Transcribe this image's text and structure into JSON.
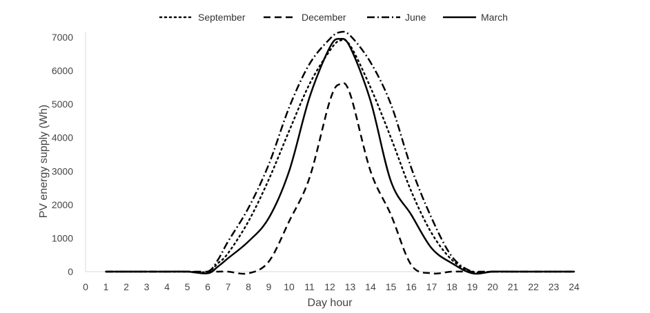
{
  "chart_data": {
    "type": "line",
    "xlabel": "Day hour",
    "ylabel": "PV energy supply (Wh)",
    "xlim": [
      0,
      24
    ],
    "ylim": [
      0,
      7000
    ],
    "x_ticks": [
      0,
      1,
      2,
      3,
      4,
      5,
      6,
      7,
      8,
      9,
      10,
      11,
      12,
      13,
      14,
      15,
      16,
      17,
      18,
      19,
      20,
      21,
      22,
      23,
      24
    ],
    "y_ticks": [
      0,
      1000,
      2000,
      3000,
      4000,
      5000,
      6000,
      7000
    ],
    "grid": false,
    "legend_position": "top",
    "x": [
      1,
      2,
      3,
      4,
      5,
      6,
      6.5,
      7,
      8,
      9,
      10,
      11,
      12,
      12.5,
      13,
      14,
      15,
      16,
      17,
      18,
      19,
      20,
      21,
      22,
      23,
      24
    ],
    "series": [
      {
        "name": "September",
        "style": "dotted",
        "color": "#000000",
        "values": [
          0,
          0,
          0,
          0,
          0,
          0,
          250,
          550,
          1500,
          2750,
          4200,
          5600,
          6600,
          6900,
          6750,
          5500,
          4000,
          2400,
          1150,
          350,
          0,
          0,
          0,
          0,
          0,
          0
        ]
      },
      {
        "name": "December",
        "style": "dashed",
        "color": "#000000",
        "values": [
          0,
          0,
          0,
          0,
          0,
          0,
          0,
          0,
          -50,
          300,
          1500,
          2800,
          5100,
          5600,
          5300,
          3000,
          1700,
          200,
          -50,
          0,
          0,
          0,
          0,
          0,
          0,
          0
        ]
      },
      {
        "name": "June",
        "style": "dashdot",
        "color": "#000000",
        "values": [
          0,
          0,
          0,
          0,
          0,
          0,
          350,
          900,
          1900,
          3200,
          4900,
          6200,
          6950,
          7150,
          7050,
          6250,
          5000,
          3100,
          1600,
          450,
          0,
          0,
          0,
          0,
          0,
          0
        ]
      },
      {
        "name": "March",
        "style": "solid",
        "color": "#000000",
        "values": [
          0,
          0,
          0,
          0,
          0,
          -50,
          150,
          400,
          900,
          1600,
          3000,
          5200,
          6700,
          6950,
          6700,
          5100,
          2700,
          1700,
          700,
          250,
          -50,
          0,
          0,
          0,
          0,
          0
        ]
      }
    ]
  }
}
